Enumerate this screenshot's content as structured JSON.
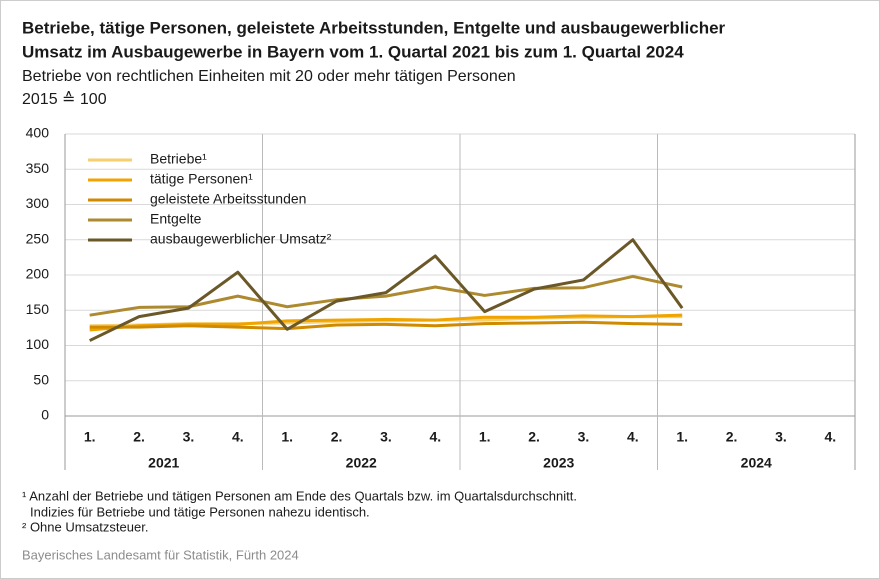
{
  "chart_data": {
    "type": "line",
    "title": [
      "Betriebe, tätige Personen, geleistete Arbeitsstunden, Entgelte und ausbaugewerblicher",
      "Umsatz im Ausbaugewerbe in Bayern vom 1. Quartal 2021 bis zum 1. Quartal 2024"
    ],
    "subtitle": [
      "Betriebe von rechtlichen Einheiten mit 20 oder mehr tätigen Personen",
      "2015 ≙ 100"
    ],
    "categories": [
      "1.",
      "2.",
      "3.",
      "4.",
      "1.",
      "2.",
      "3.",
      "4.",
      "1.",
      "2.",
      "3.",
      "4.",
      "1.",
      "2.",
      "3.",
      "4."
    ],
    "groups": [
      "2021",
      "2022",
      "2023",
      "2024"
    ],
    "series": [
      {
        "name": "Betriebe¹",
        "color": "#f5cf72",
        "values": [
          128,
          129,
          131,
          131,
          132,
          134,
          135,
          136,
          136,
          139,
          140,
          141,
          141,
          null,
          null,
          null
        ]
      },
      {
        "name": "tätige Personen¹",
        "color": "#f0a400",
        "values": [
          122,
          128,
          130,
          130,
          135,
          136,
          137,
          136,
          140,
          140,
          142,
          141,
          143,
          null,
          null,
          null
        ]
      },
      {
        "name": "geleistete Arbeitsstunden",
        "color": "#d08a00",
        "values": [
          126,
          126,
          128,
          126,
          124,
          129,
          130,
          128,
          131,
          132,
          133,
          131,
          130,
          null,
          null,
          null
        ]
      },
      {
        "name": "Entgelte",
        "color": "#ad8a30",
        "values": [
          143,
          154,
          155,
          170,
          155,
          165,
          170,
          183,
          171,
          181,
          182,
          198,
          183,
          null,
          null,
          null
        ]
      },
      {
        "name": "ausbaugewerblicher Umsatz²",
        "color": "#6b5828",
        "values": [
          107,
          141,
          153,
          204,
          123,
          163,
          175,
          227,
          148,
          180,
          193,
          250,
          153,
          null,
          null,
          null
        ]
      }
    ],
    "ylim": [
      0,
      400
    ],
    "yticks": [
      0,
      50,
      100,
      150,
      200,
      250,
      300,
      350,
      400
    ],
    "grid": true,
    "footnotes": [
      "¹ Anzahl der Betriebe und tätigen Personen am Ende des Quartals bzw. im Quartalsdurchschnitt.",
      "Indizies für Betriebe und tätige Personen nahezu identisch.",
      "² Ohne Umsatzsteuer."
    ],
    "source": "Bayerisches Landesamt für Statistik, Fürth 2024"
  }
}
